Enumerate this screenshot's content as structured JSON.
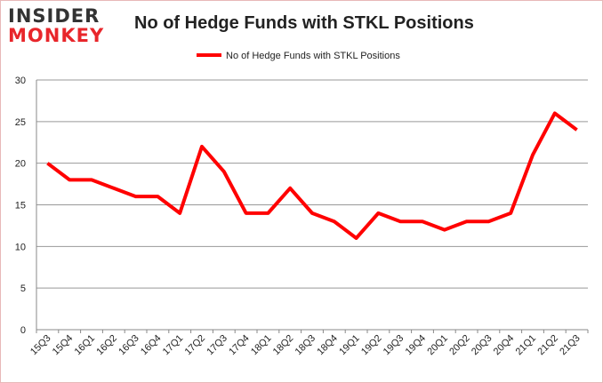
{
  "logo": {
    "line1": "INSIDER",
    "line2": "MONKEY",
    "color1": "#333333",
    "color2": "#e8262b"
  },
  "chart_data": {
    "type": "line",
    "title": "No of Hedge Funds with STKL Positions",
    "legend": {
      "position": "top",
      "entries": [
        "No of Hedge Funds with STKL Positions"
      ]
    },
    "categories": [
      "15Q3",
      "15Q4",
      "16Q1",
      "16Q2",
      "16Q3",
      "16Q4",
      "17Q1",
      "17Q2",
      "17Q3",
      "17Q4",
      "18Q1",
      "18Q2",
      "18Q3",
      "18Q4",
      "19Q1",
      "19Q2",
      "19Q3",
      "19Q4",
      "20Q1",
      "20Q2",
      "20Q3",
      "20Q4",
      "21Q1",
      "21Q2",
      "21Q3"
    ],
    "series": [
      {
        "name": "No of Hedge Funds with STKL Positions",
        "color": "#ff0000",
        "values": [
          20,
          18,
          18,
          17,
          16,
          16,
          14,
          22,
          19,
          14,
          14,
          17,
          14,
          13,
          11,
          14,
          13,
          13,
          12,
          13,
          13,
          14,
          21,
          26,
          24
        ]
      }
    ],
    "ylim": [
      0,
      30
    ],
    "yticks": [
      0,
      5,
      10,
      15,
      20,
      25,
      30
    ],
    "grid": true,
    "xlabel": "",
    "ylabel": ""
  }
}
